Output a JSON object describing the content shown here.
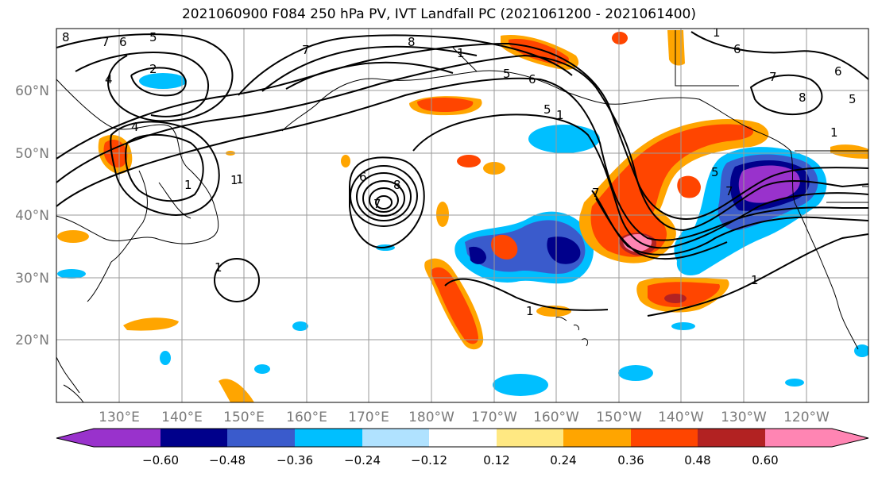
{
  "title": "2021060900 F084 250 hPa PV, IVT Landfall PC (2021061200 - 2021061400)",
  "lat_labels": [
    "60°N",
    "50°N",
    "40°N",
    "30°N",
    "20°N"
  ],
  "lon_labels": [
    "130°E",
    "140°E",
    "150°E",
    "160°E",
    "170°E",
    "180°W",
    "170°W",
    "160°W",
    "150°W",
    "140°W",
    "130°W",
    "120°W"
  ],
  "colorbar": {
    "tick_labels": [
      "−0.60",
      "−0.48",
      "−0.36",
      "−0.24",
      "−0.12",
      "0.12",
      "0.24",
      "0.36",
      "0.48",
      "0.60"
    ],
    "colors": [
      "#9932cc",
      "#00008b",
      "#3a5bcc",
      "#00bfff",
      "#b0e2ff",
      "#ffffff",
      "#ffe882",
      "#ffa500",
      "#ff4500",
      "#b22222",
      "#ff85b3"
    ]
  },
  "pv_contour_labels": [
    "8",
    "7",
    "6",
    "5",
    "2",
    "4",
    "4",
    "7",
    "8",
    "5",
    "6",
    "5",
    "7",
    "1",
    "1",
    "1",
    "1",
    "6",
    "7",
    "8",
    "5",
    "7",
    "6",
    "8",
    "6",
    "7",
    "5",
    "1",
    "1",
    "1",
    "1",
    "1",
    "1"
  ]
}
